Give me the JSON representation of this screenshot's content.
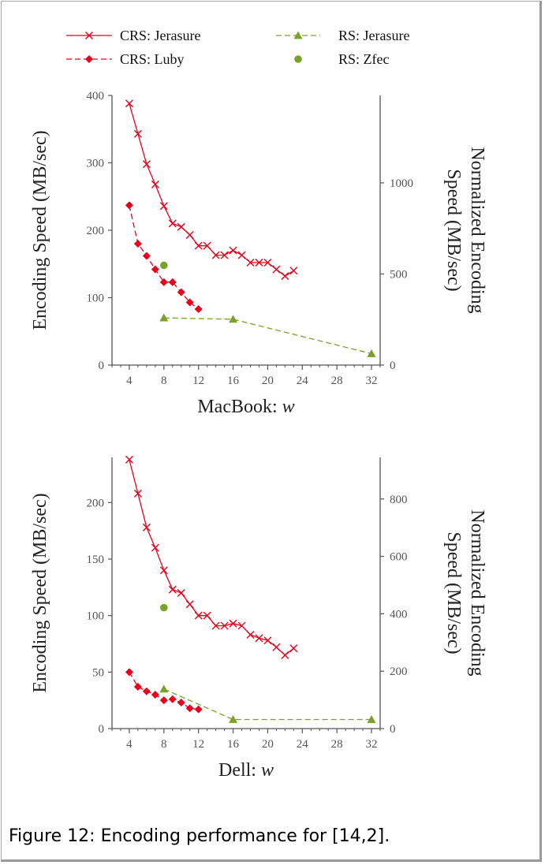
{
  "caption": "Figure 12: Encoding performance for [14,2].",
  "colors": {
    "crs": "#e8001c",
    "rs": "#7aa22a",
    "axis": "#555555"
  },
  "legend": {
    "crs_jerasure": "CRS: Jerasure",
    "crs_luby": "CRS: Luby",
    "rs_jerasure": "RS: Jerasure",
    "rs_zfec": "RS: Zfec"
  },
  "chart_data": [
    {
      "type": "line",
      "xlabel_prefix": "MacBook: ",
      "xlabel_var": "w",
      "ylabel": "Encoding Speed (MB/sec)",
      "ylabel2_line1": "Normalized Encoding",
      "ylabel2_line2": "Speed (MB/sec)",
      "xticks": [
        4,
        8,
        12,
        16,
        20,
        24,
        28,
        32
      ],
      "yticks": [
        0,
        100,
        200,
        300,
        400
      ],
      "y2ticks": [
        0,
        500,
        1000
      ],
      "xlim": [
        2,
        33
      ],
      "ylim": [
        0,
        400
      ],
      "y2lim": [
        0,
        1480
      ],
      "series": [
        {
          "name": "CRS: Jerasure",
          "marker": "x",
          "x": [
            4,
            5,
            6,
            7,
            8,
            9,
            10,
            11,
            12,
            13,
            14,
            15,
            16,
            17,
            18,
            19,
            20,
            21,
            22,
            23
          ],
          "y": [
            388,
            343,
            298,
            268,
            236,
            210,
            205,
            193,
            177,
            177,
            163,
            163,
            170,
            163,
            152,
            152,
            152,
            142,
            132,
            140
          ]
        },
        {
          "name": "CRS: Luby",
          "marker": "diamond",
          "x": [
            4,
            5,
            6,
            7,
            8,
            9,
            10,
            11,
            12
          ],
          "y": [
            237,
            180,
            162,
            142,
            123,
            123,
            108,
            93,
            83
          ]
        },
        {
          "name": "RS: Jerasure",
          "marker": "triangle",
          "x": [
            8,
            16,
            32
          ],
          "y": [
            70,
            68,
            17
          ]
        },
        {
          "name": "RS: Zfec",
          "marker": "circle",
          "x": [
            8
          ],
          "y": [
            148
          ]
        }
      ]
    },
    {
      "type": "line",
      "xlabel_prefix": "Dell: ",
      "xlabel_var": "w",
      "ylabel": "Encoding Speed (MB/sec)",
      "ylabel2_line1": "Normalized Encoding",
      "ylabel2_line2": "Speed (MB/sec)",
      "xticks": [
        4,
        8,
        12,
        16,
        20,
        24,
        28,
        32
      ],
      "yticks": [
        0,
        50,
        100,
        150,
        200
      ],
      "y2ticks": [
        0,
        200,
        400,
        600,
        800
      ],
      "xlim": [
        2,
        33
      ],
      "ylim": [
        0,
        240
      ],
      "y2lim": [
        0,
        945
      ],
      "series": [
        {
          "name": "CRS: Jerasure",
          "marker": "x",
          "x": [
            4,
            5,
            6,
            7,
            8,
            9,
            10,
            11,
            12,
            13,
            14,
            15,
            16,
            17,
            18,
            19,
            20,
            21,
            22,
            23
          ],
          "y": [
            238,
            208,
            178,
            160,
            140,
            123,
            120,
            110,
            100,
            100,
            91,
            91,
            93,
            91,
            83,
            80,
            78,
            72,
            65,
            71
          ]
        },
        {
          "name": "CRS: Luby",
          "marker": "diamond",
          "x": [
            4,
            5,
            6,
            7,
            8,
            9,
            10,
            11,
            12
          ],
          "y": [
            50,
            37,
            33,
            30,
            25,
            26,
            23,
            18,
            17
          ]
        },
        {
          "name": "RS: Jerasure",
          "marker": "triangle",
          "x": [
            8,
            16,
            32
          ],
          "y": [
            35,
            8,
            8
          ]
        },
        {
          "name": "RS: Zfec",
          "marker": "circle",
          "x": [
            8
          ],
          "y": [
            107
          ]
        }
      ]
    }
  ]
}
